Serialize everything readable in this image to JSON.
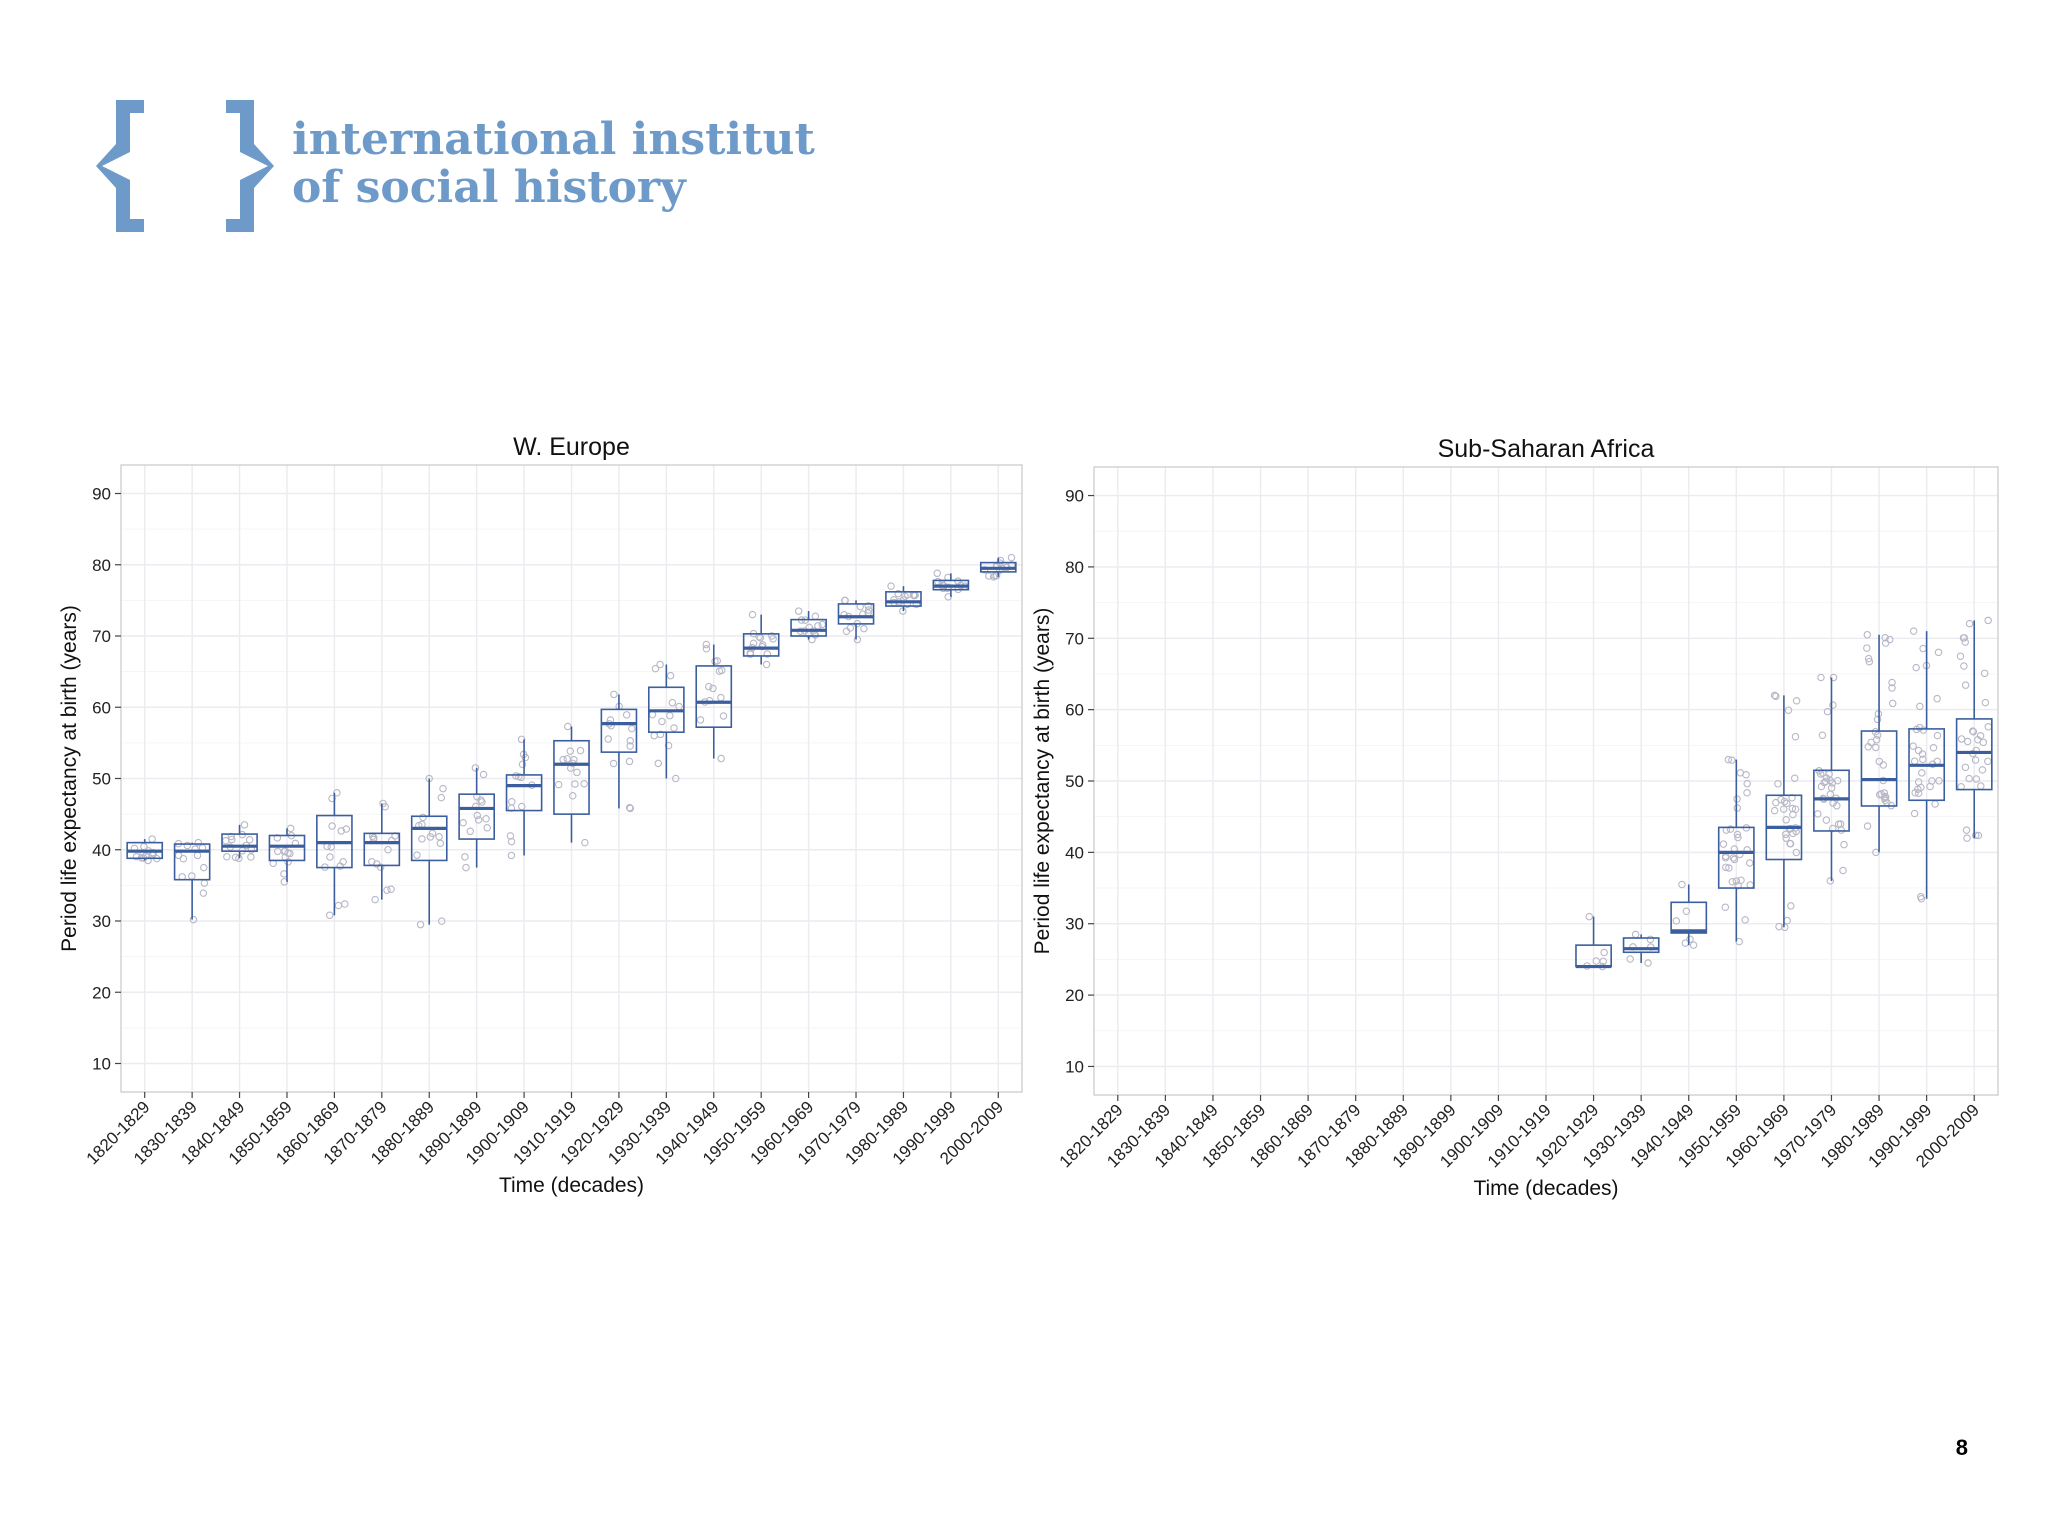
{
  "logo": {
    "line1": "international institute",
    "line2": "of social history",
    "color": "#6d9ac8"
  },
  "page_number": "8",
  "colors": {
    "box": "#3b5f9e",
    "point": "#b7b7c7",
    "grid": "#ebebf0",
    "frame": "#c8c8c8"
  },
  "chart_data": [
    {
      "type": "boxplot",
      "title": "W. Europe",
      "xlabel": "Time (decades)",
      "ylabel": "Period life expectancy at birth (years)",
      "ylim": [
        6,
        94
      ],
      "yticks": [
        10,
        20,
        30,
        40,
        50,
        60,
        70,
        80,
        90
      ],
      "grid": true,
      "categories": [
        "1820-1829",
        "1830-1839",
        "1840-1849",
        "1850-1859",
        "1860-1869",
        "1870-1879",
        "1880-1889",
        "1890-1899",
        "1900-1909",
        "1910-1919",
        "1920-1929",
        "1930-1939",
        "1940-1949",
        "1950-1959",
        "1960-1969",
        "1970-1979",
        "1980-1989",
        "1990-1999",
        "2000-2009"
      ],
      "boxes": [
        {
          "cat": "1820-1829",
          "min": 38.5,
          "q1": 38.8,
          "median": 39.8,
          "q3": 41.0,
          "max": 41.5
        },
        {
          "cat": "1830-1839",
          "min": 30.2,
          "q1": 35.8,
          "median": 39.8,
          "q3": 40.8,
          "max": 41.0
        },
        {
          "cat": "1840-1849",
          "min": 38.8,
          "q1": 39.8,
          "median": 40.5,
          "q3": 42.2,
          "max": 43.5
        },
        {
          "cat": "1850-1859",
          "min": 35.5,
          "q1": 38.5,
          "median": 40.5,
          "q3": 42.0,
          "max": 43.0
        },
        {
          "cat": "1860-1869",
          "min": 30.8,
          "q1": 37.5,
          "median": 41.0,
          "q3": 44.8,
          "max": 48.0
        },
        {
          "cat": "1870-1879",
          "min": 33.0,
          "q1": 37.8,
          "median": 41.0,
          "q3": 42.3,
          "max": 46.5
        },
        {
          "cat": "1880-1889",
          "min": 29.5,
          "q1": 38.5,
          "median": 43.0,
          "q3": 44.7,
          "max": 50.0
        },
        {
          "cat": "1890-1899",
          "min": 37.5,
          "q1": 41.5,
          "median": 45.8,
          "q3": 47.8,
          "max": 51.5
        },
        {
          "cat": "1900-1909",
          "min": 39.2,
          "q1": 45.5,
          "median": 49.0,
          "q3": 50.5,
          "max": 55.5
        },
        {
          "cat": "1910-1919",
          "min": 41.0,
          "q1": 45.0,
          "median": 52.0,
          "q3": 55.3,
          "max": 57.3
        },
        {
          "cat": "1920-1929",
          "min": 45.8,
          "q1": 53.7,
          "median": 57.7,
          "q3": 59.7,
          "max": 61.8
        },
        {
          "cat": "1930-1939",
          "min": 50.0,
          "q1": 56.5,
          "median": 59.5,
          "q3": 62.8,
          "max": 66.0
        },
        {
          "cat": "1940-1949",
          "min": 52.8,
          "q1": 57.2,
          "median": 60.7,
          "q3": 65.8,
          "max": 68.8
        },
        {
          "cat": "1950-1959",
          "min": 66.0,
          "q1": 67.2,
          "median": 68.3,
          "q3": 70.3,
          "max": 73.0
        },
        {
          "cat": "1960-1969",
          "min": 69.5,
          "q1": 70.0,
          "median": 70.8,
          "q3": 72.3,
          "max": 73.5
        },
        {
          "cat": "1970-1979",
          "min": 69.5,
          "q1": 71.7,
          "median": 72.7,
          "q3": 74.5,
          "max": 75.0
        },
        {
          "cat": "1980-1989",
          "min": 73.5,
          "q1": 74.2,
          "median": 74.8,
          "q3": 76.2,
          "max": 77.0
        },
        {
          "cat": "1990-1999",
          "min": 75.5,
          "q1": 76.5,
          "median": 77.0,
          "q3": 77.8,
          "max": 78.8
        },
        {
          "cat": "2000-2009",
          "min": 78.3,
          "q1": 79.0,
          "median": 79.5,
          "q3": 80.3,
          "max": 81.0
        }
      ]
    },
    {
      "type": "boxplot",
      "title": "Sub-Saharan Africa",
      "xlabel": "Time (decades)",
      "ylabel": "Period life expectancy at birth (years)",
      "ylim": [
        6,
        94
      ],
      "yticks": [
        10,
        20,
        30,
        40,
        50,
        60,
        70,
        80,
        90
      ],
      "grid": true,
      "categories": [
        "1820-1829",
        "1830-1839",
        "1840-1849",
        "1850-1859",
        "1860-1869",
        "1870-1879",
        "1880-1889",
        "1890-1899",
        "1900-1909",
        "1910-1919",
        "1920-1929",
        "1930-1939",
        "1940-1949",
        "1950-1959",
        "1960-1969",
        "1970-1979",
        "1980-1989",
        "1990-1999",
        "2000-2009"
      ],
      "boxes": [
        {
          "cat": "1920-1929",
          "min": 24.0,
          "q1": 24.0,
          "median": 24.0,
          "q3": 27.0,
          "max": 31.0
        },
        {
          "cat": "1930-1939",
          "min": 24.5,
          "q1": 26.0,
          "median": 26.5,
          "q3": 28.0,
          "max": 28.5
        },
        {
          "cat": "1940-1949",
          "min": 27.0,
          "q1": 28.7,
          "median": 29.0,
          "q3": 33.0,
          "max": 35.5
        },
        {
          "cat": "1950-1959",
          "min": 27.5,
          "q1": 35.0,
          "median": 40.0,
          "q3": 43.5,
          "max": 53.0
        },
        {
          "cat": "1960-1969",
          "min": 29.5,
          "q1": 39.0,
          "median": 43.5,
          "q3": 48.0,
          "max": 62.0
        },
        {
          "cat": "1970-1979",
          "min": 36.0,
          "q1": 43.0,
          "median": 47.5,
          "q3": 51.5,
          "max": 64.5
        },
        {
          "cat": "1980-1989",
          "min": 40.0,
          "q1": 46.5,
          "median": 50.2,
          "q3": 57.0,
          "max": 70.5
        },
        {
          "cat": "1990-1999",
          "min": 33.5,
          "q1": 47.3,
          "median": 52.2,
          "q3": 57.3,
          "max": 71.0
        },
        {
          "cat": "2000-2009",
          "min": 42.0,
          "q1": 48.8,
          "median": 54.0,
          "q3": 58.7,
          "max": 72.5
        }
      ]
    }
  ]
}
